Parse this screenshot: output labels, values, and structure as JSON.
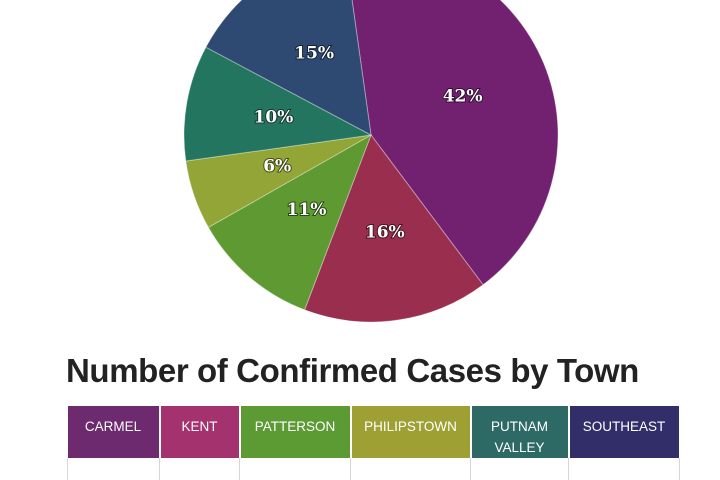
{
  "chart_data": {
    "type": "pie",
    "slices": [
      {
        "label": "42%",
        "value": 42,
        "color": "#722170"
      },
      {
        "label": "16%",
        "value": 16,
        "color": "#9a2e4f"
      },
      {
        "label": "11%",
        "value": 11,
        "color": "#5e9a31"
      },
      {
        "label": "6%",
        "value": 6,
        "color": "#93a536"
      },
      {
        "label": "10%",
        "value": 10,
        "color": "#247560"
      },
      {
        "label": "15%",
        "value": 15,
        "color": "#2e4a72"
      }
    ]
  },
  "section": {
    "title": "Number of Confirmed Cases by Town"
  },
  "table": {
    "headers": [
      {
        "label": "CARMEL",
        "color": "#6e2a6e"
      },
      {
        "label": "KENT",
        "color": "#a3326f"
      },
      {
        "label": "PATTERSON",
        "color": "#5c9a33"
      },
      {
        "label": "PHILIPSTOWN",
        "color": "#9ea033"
      },
      {
        "label": "PUTNAM VALLEY",
        "color": "#2d6a66"
      },
      {
        "label": "SOUTHEAST",
        "color": "#322e6a"
      }
    ]
  }
}
